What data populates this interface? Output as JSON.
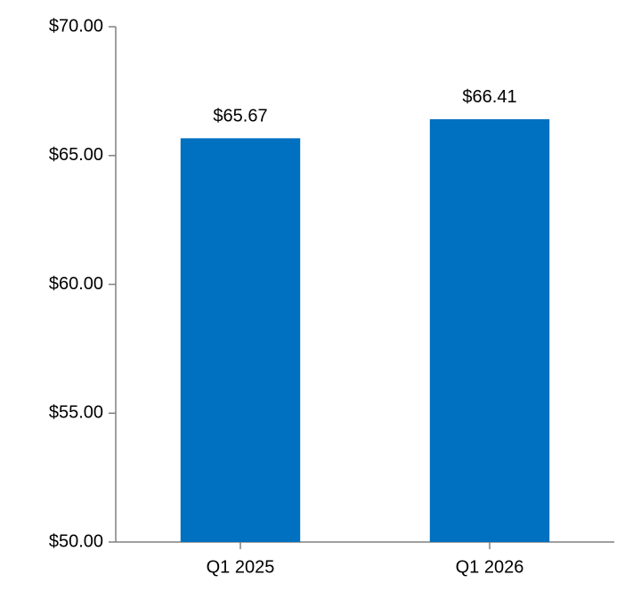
{
  "chart_data": {
    "type": "bar",
    "categories": [
      "Q1 2025",
      "Q1 2026"
    ],
    "values": [
      65.67,
      66.41
    ],
    "value_labels": [
      "$65.67",
      "$66.41"
    ],
    "color": "#0070c0",
    "ylim": [
      50,
      70
    ],
    "yticks": [
      {
        "value": 50,
        "label": "$50.00"
      },
      {
        "value": 55,
        "label": "$55.00"
      },
      {
        "value": 60,
        "label": "$60.00"
      },
      {
        "value": 65,
        "label": "$65.00"
      },
      {
        "value": 70,
        "label": "$70.00"
      }
    ],
    "grid": false
  }
}
